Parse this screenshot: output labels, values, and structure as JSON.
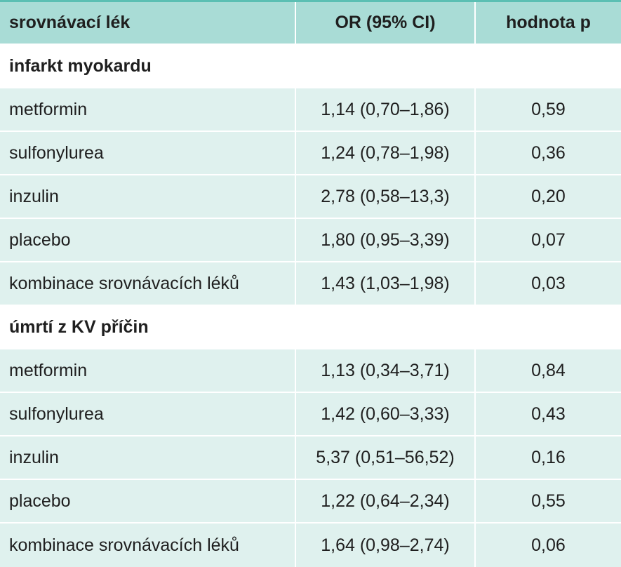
{
  "header": {
    "col1": "srovnávací lék",
    "col2": "OR (95% CI)",
    "col3": "hodnota p"
  },
  "groups": [
    {
      "title": "infarkt myokardu",
      "rows": [
        {
          "drug": "metformin",
          "or": "1,14 (0,70–1,86)",
          "p": "0,59"
        },
        {
          "drug": "sulfonylurea",
          "or": "1,24 (0,78–1,98)",
          "p": "0,36"
        },
        {
          "drug": "inzulin",
          "or": "2,78 (0,58–13,3)",
          "p": "0,20"
        },
        {
          "drug": "placebo",
          "or": "1,80 (0,95–3,39)",
          "p": "0,07"
        },
        {
          "drug": "kombinace srovnávacích léků",
          "or": "1,43 (1,03–1,98)",
          "p": "0,03"
        }
      ]
    },
    {
      "title": "úmrtí z KV příčin",
      "rows": [
        {
          "drug": "metformin",
          "or": "1,13 (0,34–3,71)",
          "p": "0,84"
        },
        {
          "drug": "sulfonylurea",
          "or": "1,42 (0,60–3,33)",
          "p": "0,43"
        },
        {
          "drug": "inzulin",
          "or": "5,37 (0,51–56,52)",
          "p": "0,16"
        },
        {
          "drug": "placebo",
          "or": "1,22 (0,64–2,34)",
          "p": "0,55"
        },
        {
          "drug": "kombinace srovnávacích léků",
          "or": "1,64 (0,98–2,74)",
          "p": "0,06"
        }
      ]
    }
  ]
}
